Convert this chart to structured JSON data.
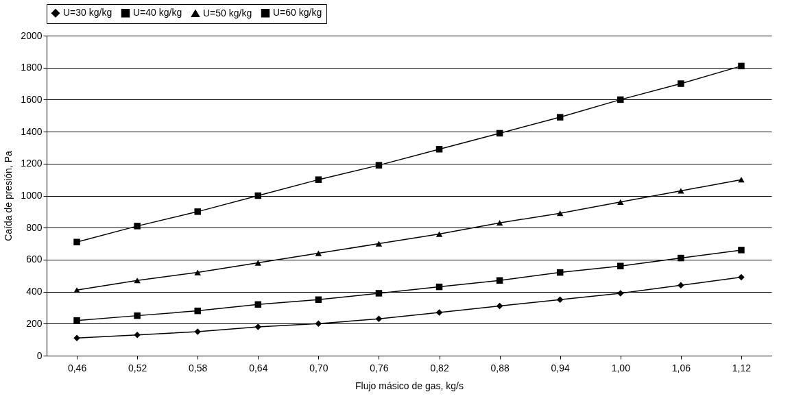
{
  "chart_data": {
    "type": "line",
    "xlabel": "Flujo másico de gas, kg/s",
    "ylabel": "Caída de presión, Pa",
    "categories": [
      "0,46",
      "0,52",
      "0,58",
      "0,64",
      "0,70",
      "0,76",
      "0,82",
      "0,88",
      "0,94",
      "1,00",
      "1,06",
      "1,12"
    ],
    "ylim": [
      0,
      2000
    ],
    "yticks": [
      0,
      200,
      400,
      600,
      800,
      1000,
      1200,
      1400,
      1600,
      1800,
      2000
    ],
    "grid": "y",
    "legend": "top",
    "line_style": "solid",
    "series": [
      {
        "name": "U=30 kg/kg",
        "color": "#000000",
        "marker": "diamond",
        "values": [
          110,
          130,
          150,
          180,
          200,
          230,
          270,
          310,
          350,
          390,
          440,
          490
        ]
      },
      {
        "name": "U=40 kg/kg",
        "color": "#000000",
        "marker": "square",
        "values": [
          220,
          250,
          280,
          320,
          350,
          390,
          430,
          470,
          520,
          560,
          610,
          660
        ]
      },
      {
        "name": "U=50 kg/kg",
        "color": "#000000",
        "marker": "triangle",
        "values": [
          410,
          470,
          520,
          580,
          640,
          700,
          760,
          830,
          890,
          960,
          1030,
          1100
        ]
      },
      {
        "name": "U=60 kg/kg",
        "color": "#000000",
        "marker": "square",
        "values": [
          710,
          810,
          900,
          1000,
          1100,
          1190,
          1290,
          1390,
          1490,
          1600,
          1700,
          1810
        ]
      }
    ]
  }
}
